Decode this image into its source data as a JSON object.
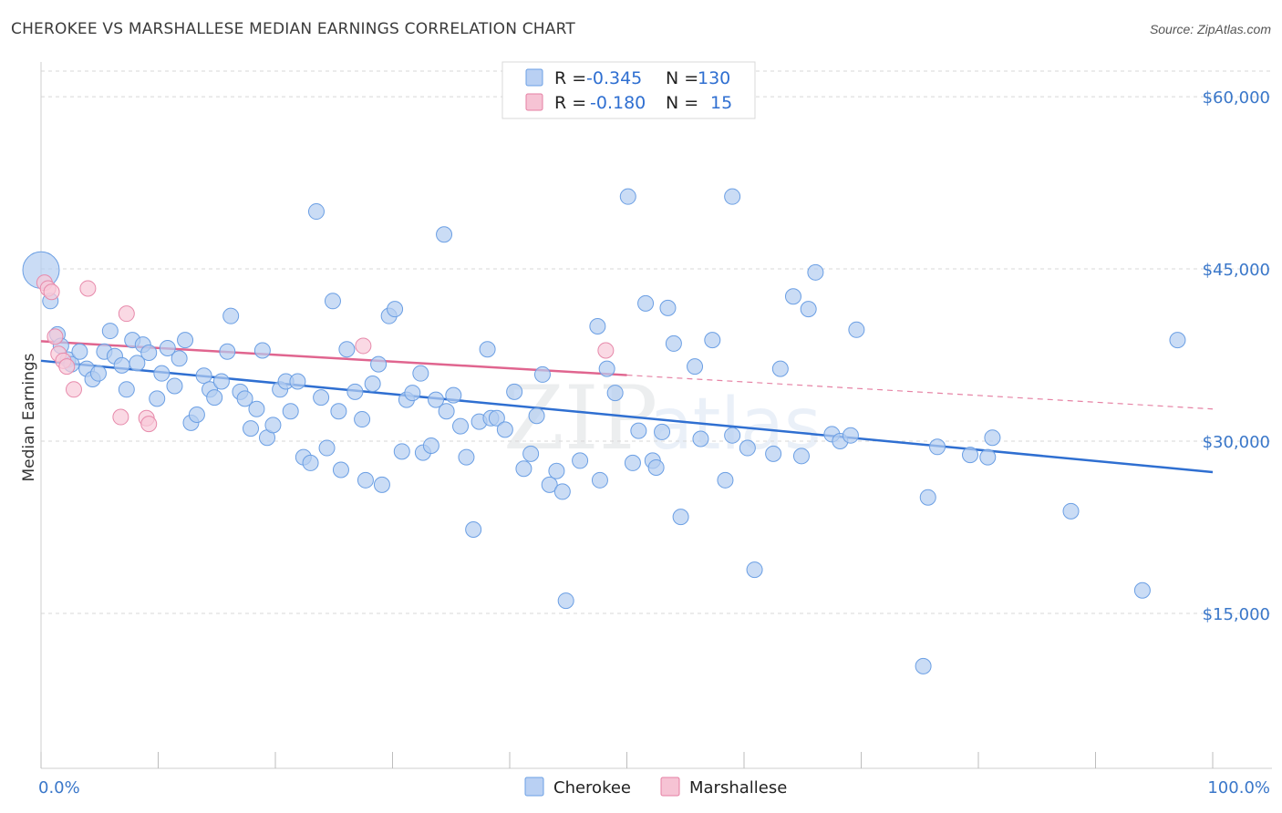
{
  "header": {
    "title": "CHEROKEE VS MARSHALLESE MEDIAN EARNINGS CORRELATION CHART",
    "source": "Source: ZipAtlas.com"
  },
  "legend": {
    "r_label": "R =",
    "n_label": "N =",
    "rows": [
      {
        "r": "-0.345",
        "n": "130",
        "color": "#6b9fe4",
        "fill": "#b9d0f3"
      },
      {
        "r": "-0.180",
        "n": "15",
        "color": "#e57fa3",
        "fill": "#f6c3d4"
      }
    ]
  },
  "colors": {
    "blue_line": "#2f6fd1",
    "pink_line": "#e0658f",
    "blue_point_fill": "#b4cdf1",
    "blue_point_stroke": "#6b9fe4",
    "pink_point_fill": "#f8c9d9",
    "pink_point_stroke": "#e78aab",
    "tick_text": "#3a77c9",
    "grid": "#d7d7d7"
  },
  "watermark": {
    "left": "ZIP",
    "right": "atlas"
  },
  "chart_data": {
    "type": "scatter",
    "title": "CHEROKEE VS MARSHALLESE MEDIAN EARNINGS CORRELATION CHART",
    "xlabel": "",
    "ylabel": "Median Earnings",
    "xlim": [
      0,
      100
    ],
    "ylim": [
      1500,
      63500
    ],
    "x_tick_labels": [
      {
        "value": 0,
        "label": "0.0%"
      },
      {
        "value": 100,
        "label": "100.0%"
      }
    ],
    "y_ticks": [
      {
        "value": 15000,
        "label": "$15,000"
      },
      {
        "value": 30000,
        "label": "$30,000"
      },
      {
        "value": 45000,
        "label": "$45,000"
      },
      {
        "value": 60000,
        "label": "$60,000"
      }
    ],
    "grid": true,
    "legend_position": "top-center",
    "series": [
      {
        "name": "Cherokee",
        "color": "#6b9fe4",
        "trend": {
          "x0": 0,
          "y0": 37000,
          "x1": 100,
          "y1": 27300,
          "dashed_from": null
        },
        "points": [
          [
            0.0,
            44900
          ],
          [
            0.8,
            42200
          ],
          [
            1.4,
            39300
          ],
          [
            1.7,
            38300
          ],
          [
            2.3,
            37100
          ],
          [
            2.6,
            36700
          ],
          [
            3.3,
            37800
          ],
          [
            3.9,
            36300
          ],
          [
            4.4,
            35400
          ],
          [
            4.9,
            35900
          ],
          [
            5.4,
            37800
          ],
          [
            5.9,
            39600
          ],
          [
            6.3,
            37400
          ],
          [
            6.9,
            36600
          ],
          [
            7.3,
            34500
          ],
          [
            7.8,
            38800
          ],
          [
            8.2,
            36800
          ],
          [
            8.7,
            38400
          ],
          [
            9.2,
            37700
          ],
          [
            9.9,
            33700
          ],
          [
            10.3,
            35900
          ],
          [
            10.8,
            38100
          ],
          [
            11.4,
            34800
          ],
          [
            11.8,
            37200
          ],
          [
            12.3,
            38800
          ],
          [
            12.8,
            31600
          ],
          [
            13.3,
            32300
          ],
          [
            13.9,
            35700
          ],
          [
            14.4,
            34500
          ],
          [
            14.8,
            33800
          ],
          [
            15.4,
            35200
          ],
          [
            15.9,
            37800
          ],
          [
            16.2,
            40900
          ],
          [
            17.0,
            34300
          ],
          [
            17.4,
            33700
          ],
          [
            17.9,
            31100
          ],
          [
            18.4,
            32800
          ],
          [
            18.9,
            37900
          ],
          [
            19.3,
            30300
          ],
          [
            19.8,
            31400
          ],
          [
            20.4,
            34500
          ],
          [
            20.9,
            35200
          ],
          [
            21.3,
            32600
          ],
          [
            21.9,
            35200
          ],
          [
            22.4,
            28600
          ],
          [
            23.0,
            28100
          ],
          [
            23.5,
            50000
          ],
          [
            23.9,
            33800
          ],
          [
            24.4,
            29400
          ],
          [
            24.9,
            42200
          ],
          [
            25.4,
            32600
          ],
          [
            25.6,
            27500
          ],
          [
            26.1,
            38000
          ],
          [
            26.8,
            34300
          ],
          [
            27.4,
            31900
          ],
          [
            27.7,
            26600
          ],
          [
            28.3,
            35000
          ],
          [
            28.8,
            36700
          ],
          [
            29.1,
            26200
          ],
          [
            29.7,
            40900
          ],
          [
            30.2,
            41500
          ],
          [
            30.8,
            29100
          ],
          [
            31.2,
            33600
          ],
          [
            31.7,
            34200
          ],
          [
            32.4,
            35900
          ],
          [
            32.6,
            29000
          ],
          [
            33.3,
            29600
          ],
          [
            33.7,
            33600
          ],
          [
            34.4,
            48000
          ],
          [
            34.6,
            32600
          ],
          [
            35.2,
            34000
          ],
          [
            35.8,
            31300
          ],
          [
            36.3,
            28600
          ],
          [
            36.9,
            22300
          ],
          [
            37.4,
            31700
          ],
          [
            38.1,
            38000
          ],
          [
            38.4,
            32000
          ],
          [
            38.9,
            32000
          ],
          [
            39.6,
            31000
          ],
          [
            40.4,
            34300
          ],
          [
            41.2,
            27600
          ],
          [
            41.8,
            28900
          ],
          [
            42.3,
            32200
          ],
          [
            42.8,
            35800
          ],
          [
            43.4,
            26200
          ],
          [
            44.0,
            27400
          ],
          [
            44.5,
            25600
          ],
          [
            44.8,
            16100
          ],
          [
            46.0,
            28300
          ],
          [
            47.5,
            40000
          ],
          [
            47.7,
            26600
          ],
          [
            48.3,
            36300
          ],
          [
            49.0,
            34200
          ],
          [
            50.1,
            51300
          ],
          [
            50.5,
            28100
          ],
          [
            51.0,
            30900
          ],
          [
            51.6,
            42000
          ],
          [
            52.2,
            28300
          ],
          [
            52.5,
            27700
          ],
          [
            53.0,
            30800
          ],
          [
            53.5,
            41600
          ],
          [
            54.0,
            38500
          ],
          [
            54.6,
            23400
          ],
          [
            55.8,
            36500
          ],
          [
            56.3,
            30200
          ],
          [
            57.3,
            38800
          ],
          [
            58.4,
            26600
          ],
          [
            59.0,
            30500
          ],
          [
            59.0,
            51300
          ],
          [
            60.3,
            29400
          ],
          [
            60.9,
            18800
          ],
          [
            62.5,
            28900
          ],
          [
            63.1,
            36300
          ],
          [
            64.2,
            42600
          ],
          [
            64.9,
            28700
          ],
          [
            65.5,
            41500
          ],
          [
            66.1,
            44700
          ],
          [
            67.5,
            30600
          ],
          [
            68.2,
            30000
          ],
          [
            69.1,
            30500
          ],
          [
            69.6,
            39700
          ],
          [
            75.3,
            10400
          ],
          [
            75.7,
            25100
          ],
          [
            76.5,
            29500
          ],
          [
            79.3,
            28800
          ],
          [
            80.8,
            28600
          ],
          [
            81.2,
            30300
          ],
          [
            87.9,
            23900
          ],
          [
            94.0,
            17000
          ],
          [
            97.0,
            38800
          ]
        ]
      },
      {
        "name": "Marshallese",
        "color": "#e78aab",
        "trend": {
          "x0": 0,
          "y0": 38700,
          "x1": 100,
          "y1": 32800,
          "dashed_from": 50
        },
        "points": [
          [
            0.3,
            43800
          ],
          [
            0.6,
            43300
          ],
          [
            0.9,
            43000
          ],
          [
            1.2,
            39100
          ],
          [
            1.5,
            37600
          ],
          [
            1.9,
            37000
          ],
          [
            2.2,
            36500
          ],
          [
            2.8,
            34500
          ],
          [
            4.0,
            43300
          ],
          [
            6.8,
            32100
          ],
          [
            7.3,
            41100
          ],
          [
            9.0,
            32000
          ],
          [
            9.2,
            31500
          ],
          [
            27.5,
            38300
          ],
          [
            48.2,
            37900
          ]
        ]
      }
    ]
  },
  "bottom_legend": [
    {
      "label": "Cherokee"
    },
    {
      "label": "Marshallese"
    }
  ]
}
